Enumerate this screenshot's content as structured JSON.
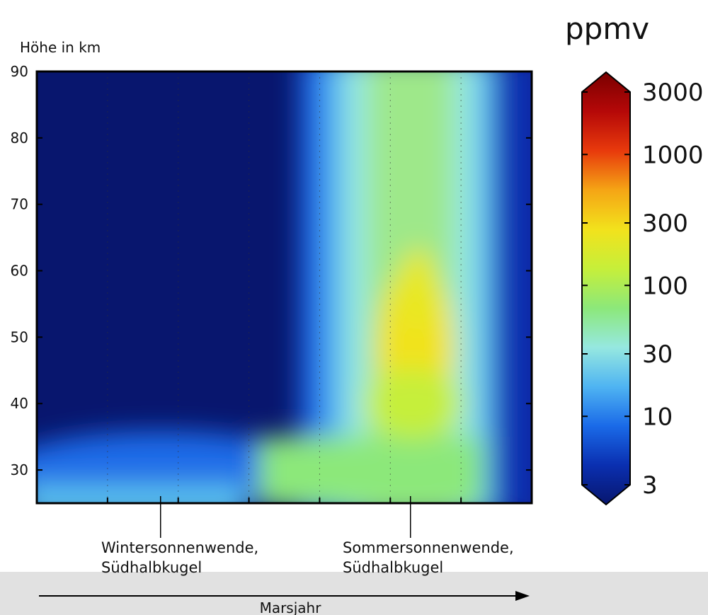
{
  "chart_data": {
    "type": "heatmap",
    "ylabel": "Höhe in km",
    "xlabel": "Marsjahr",
    "ylim": [
      25,
      90
    ],
    "y_ticks": [
      "30",
      "40",
      "50",
      "60",
      "70",
      "80",
      "90"
    ],
    "x_divisions": 7,
    "colorbar": {
      "unit": "ppmv",
      "scale": "log",
      "ticks": [
        "3",
        "10",
        "30",
        "100",
        "300",
        "1000",
        "3000"
      ],
      "range": [
        3,
        3000
      ]
    },
    "annotations": [
      {
        "line1": "Wintersonnenwende,",
        "line2": "Südhalbkugel",
        "x_fraction": 0.25
      },
      {
        "line1": "Sommersonnenwende,",
        "line2": "Südhalbkugel",
        "x_fraction": 0.755
      }
    ],
    "colormap": [
      "#08166e",
      "#0a2fb0",
      "#1a6ae8",
      "#4fb4f2",
      "#96e8e0",
      "#8ce87a",
      "#c6ef3a",
      "#f2e21c",
      "#f5a515",
      "#e83a0c",
      "#b50808",
      "#7a0000"
    ],
    "field_description_levels_ppmv": {
      "winter_upper_region": 3,
      "polar_band_low": 10,
      "late_year_plume_peak": 300,
      "summer_low_altitude": 100
    }
  }
}
